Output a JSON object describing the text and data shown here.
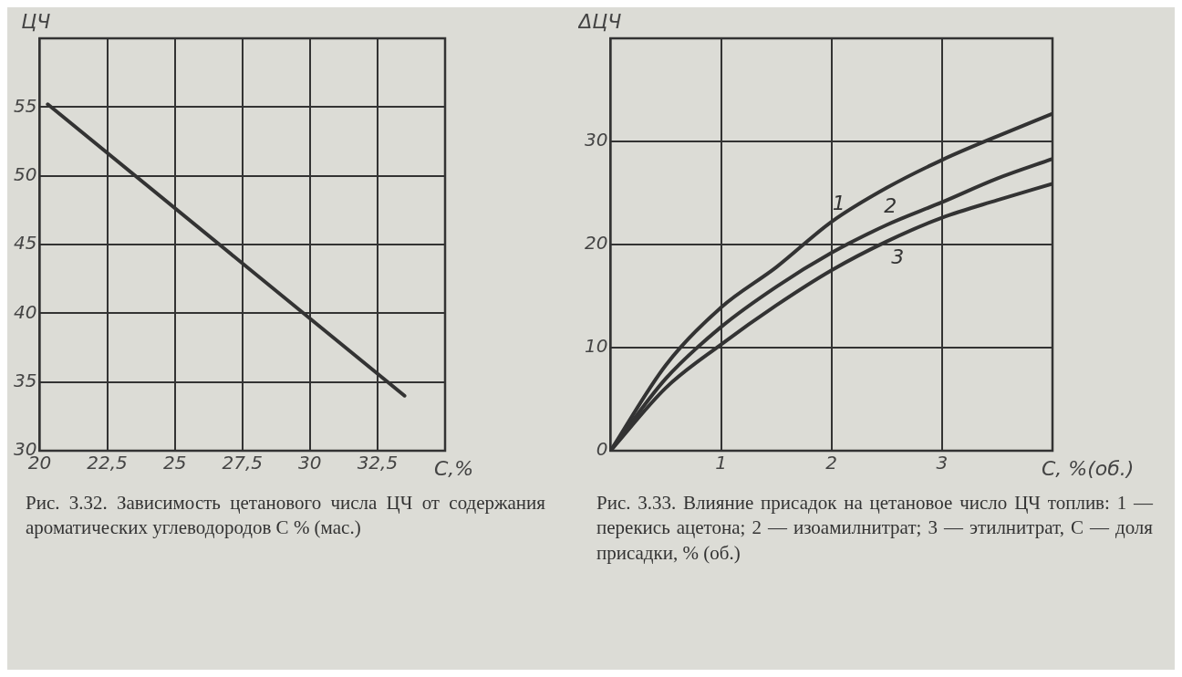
{
  "chart_data": [
    {
      "type": "line",
      "xlabel": "С,%",
      "ylabel": "ЦЧ",
      "xlim": [
        20,
        35
      ],
      "xticks": [
        20,
        {
          "value": 22.5,
          "label": "22,5"
        },
        25,
        {
          "value": 27.5,
          "label": "27,5"
        },
        30,
        {
          "value": 32.5,
          "label": "32,5"
        }
      ],
      "ylim": [
        30,
        60
      ],
      "yticks": [
        30,
        35,
        40,
        45,
        50,
        55
      ],
      "grid": true,
      "series": [
        {
          "color": "#333333",
          "x": [
            20.3,
            33.5
          ],
          "values": [
            55.2,
            34
          ]
        }
      ],
      "annotations": [
        "Рис. 3.32. Зависимость цетанового числа ЦЧ от содержания ароматических углеводородов С % (мас.)"
      ]
    },
    {
      "type": "line",
      "xlabel": "С, %(об.)",
      "ylabel": "ΔЦЧ",
      "xlim": [
        0,
        4
      ],
      "xticks": [
        1,
        2,
        3
      ],
      "ylim": [
        0,
        40
      ],
      "yticks": [
        0,
        10,
        20,
        30
      ],
      "grid": true,
      "x": [
        0,
        0.5,
        1,
        1.5,
        2,
        2.5,
        3,
        3.5,
        4
      ],
      "series": [
        {
          "name": "1",
          "color": "#333333",
          "values": [
            0,
            8.3,
            13.9,
            17.8,
            22.2,
            25.5,
            28.2,
            30.5,
            32.7
          ]
        },
        {
          "name": "2",
          "color": "#333333",
          "values": [
            0,
            7,
            12,
            15.9,
            19.2,
            21.9,
            24.1,
            26.4,
            28.3
          ]
        },
        {
          "name": "3",
          "color": "#333333",
          "values": [
            0,
            6.1,
            10.3,
            14.1,
            17.5,
            20.3,
            22.6,
            24.3,
            25.9
          ]
        }
      ],
      "annotations": [
        "Рис. 3.33. Влияние присадок на цетановое число ЦЧ топлив: 1 — перекись ацетона; 2 — изоамилнитрат; 3 — этилнитрат, С — доля присадки, % (об.)"
      ]
    }
  ]
}
